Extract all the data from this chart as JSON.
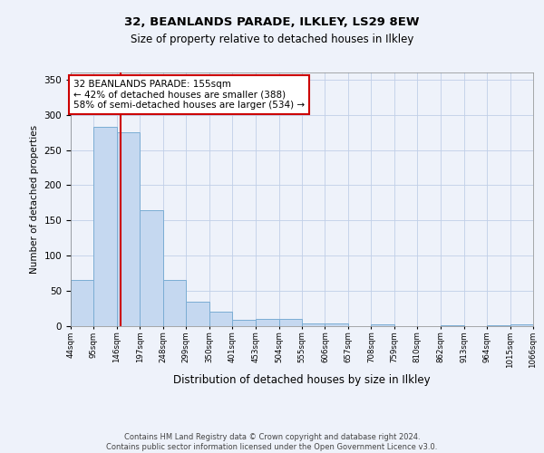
{
  "title_line1": "32, BEANLANDS PARADE, ILKLEY, LS29 8EW",
  "title_line2": "Size of property relative to detached houses in Ilkley",
  "xlabel": "Distribution of detached houses by size in Ilkley",
  "ylabel": "Number of detached properties",
  "footer_line1": "Contains HM Land Registry data © Crown copyright and database right 2024.",
  "footer_line2": "Contains public sector information licensed under the Open Government Licence v3.0.",
  "bin_edges": [
    44,
    95,
    146,
    197,
    248,
    299,
    350,
    401,
    453,
    504,
    555,
    606,
    657,
    708,
    759,
    810,
    862,
    913,
    964,
    1015,
    1066
  ],
  "bar_heights": [
    65,
    283,
    275,
    164,
    65,
    35,
    20,
    9,
    10,
    10,
    4,
    4,
    0,
    2,
    0,
    0,
    1,
    0,
    1,
    2
  ],
  "bar_color": "#c5d8f0",
  "bar_edgecolor": "#7badd4",
  "property_size": 155,
  "vline_color": "#cc0000",
  "annotation_line1": "32 BEANLANDS PARADE: 155sqm",
  "annotation_line2": "← 42% of detached houses are smaller (388)",
  "annotation_line3": "58% of semi-detached houses are larger (534) →",
  "annotation_box_facecolor": "white",
  "annotation_box_edgecolor": "#cc0000",
  "bg_color": "#eef2fa",
  "grid_color": "#c0cfe8",
  "ylim": [
    0,
    360
  ],
  "yticks": [
    0,
    50,
    100,
    150,
    200,
    250,
    300,
    350
  ]
}
